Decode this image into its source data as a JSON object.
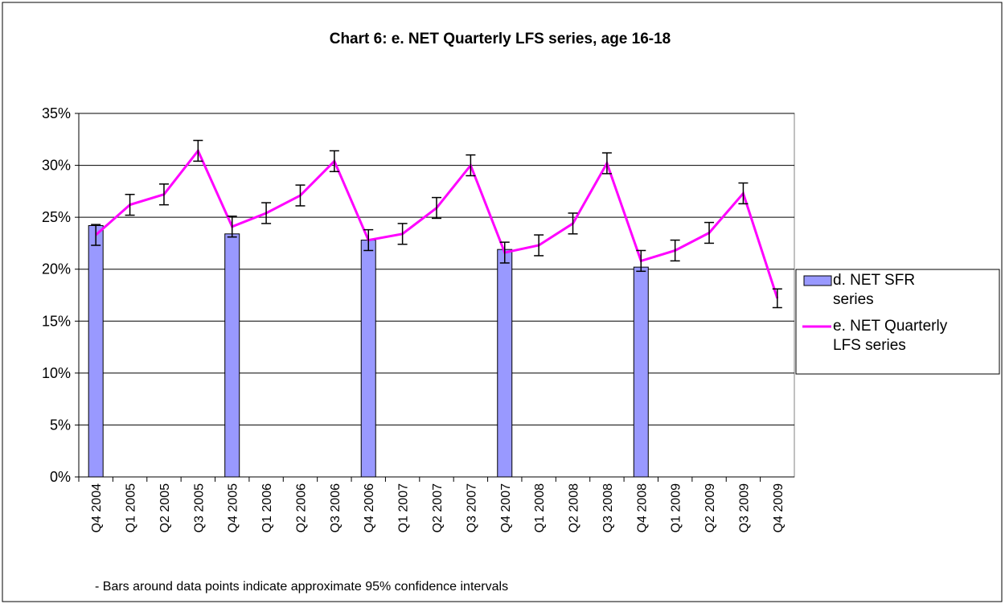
{
  "chart_data": {
    "type": "bar-line",
    "title": "Chart 6: e. NET Quarterly LFS series, age 16-18",
    "annotation": "- Bars around data points indicate approximate 95% confidence intervals",
    "categories": [
      "Q4 2004",
      "Q1 2005",
      "Q2 2005",
      "Q3 2005",
      "Q4 2005",
      "Q1 2006",
      "Q2 2006",
      "Q3 2006",
      "Q4 2006",
      "Q1 2007",
      "Q2 2007",
      "Q3 2007",
      "Q4 2007",
      "Q1 2008",
      "Q2 2008",
      "Q3 2008",
      "Q4 2008",
      "Q1 2009",
      "Q2 2009",
      "Q3 2009",
      "Q4 2009"
    ],
    "series": [
      {
        "name": "d. NET SFR series",
        "type": "bar",
        "color": "#9999ff",
        "values": [
          24.2,
          null,
          null,
          null,
          23.4,
          null,
          null,
          null,
          22.8,
          null,
          null,
          null,
          21.9,
          null,
          null,
          null,
          20.2,
          null,
          null,
          null,
          null
        ]
      },
      {
        "name": "e. NET Quarterly LFS series",
        "type": "line",
        "color": "#ff00ff",
        "values": [
          23.3,
          26.2,
          27.2,
          31.4,
          24.1,
          25.4,
          27.1,
          30.4,
          22.8,
          23.4,
          25.9,
          30.0,
          21.6,
          22.3,
          24.4,
          30.2,
          20.8,
          21.8,
          23.5,
          27.3,
          17.2
        ],
        "errors": [
          1.0,
          1.0,
          1.0,
          1.0,
          1.0,
          1.0,
          1.0,
          1.0,
          1.0,
          1.0,
          1.0,
          1.0,
          1.0,
          1.0,
          1.0,
          1.0,
          1.0,
          1.0,
          1.0,
          1.0,
          0.9
        ]
      }
    ],
    "ylim": [
      0,
      35
    ],
    "yticks": [
      {
        "value": 0,
        "label": "0%"
      },
      {
        "value": 5,
        "label": "5%"
      },
      {
        "value": 10,
        "label": "10%"
      },
      {
        "value": 15,
        "label": "15%"
      },
      {
        "value": 20,
        "label": "20%"
      },
      {
        "value": 25,
        "label": "25%"
      },
      {
        "value": 30,
        "label": "30%"
      },
      {
        "value": 35,
        "label": "35%"
      }
    ],
    "grid": true,
    "legend": "right"
  }
}
